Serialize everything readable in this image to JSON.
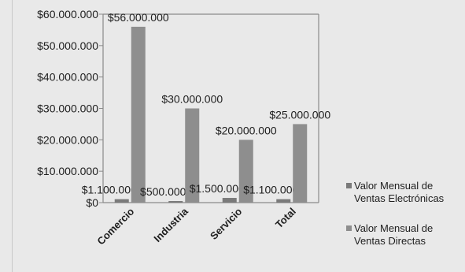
{
  "chart_data": {
    "type": "bar",
    "title": "",
    "xlabel": "",
    "ylabel": "",
    "categories": [
      "Comercio",
      "Industria",
      "Servicio",
      "Total"
    ],
    "series": [
      {
        "name": "Valor Mensual de Ventas Electrónicas",
        "values": [
          1100000,
          500000,
          1500000,
          1100000
        ],
        "labels": [
          "$1.100.000",
          "$500.000",
          "$1.500.000",
          "$1.100.000"
        ]
      },
      {
        "name": "Valor Mensual de Ventas Directas",
        "values": [
          56000000,
          30000000,
          20000000,
          25000000
        ],
        "labels": [
          "$56.000.000",
          "$30.000.000",
          "$20.000.000",
          "$25.000.000"
        ]
      }
    ],
    "ylim": [
      0,
      60000000
    ],
    "yticks": [
      0,
      10000000,
      20000000,
      30000000,
      40000000,
      50000000,
      60000000
    ],
    "ytick_labels": [
      "$0",
      "$10.000.000",
      "$20.000.000",
      "$30.000.000",
      "$40.000.000",
      "$50.000.000",
      "$60.000.000"
    ],
    "grid": false,
    "legend_position": "right"
  },
  "colors": {
    "background": "#e9e9e9",
    "plot_background": "#e9e9e9",
    "axis": "#8a8a8a",
    "series_electronic": "#7a7a7a",
    "series_direct": "#8e8e8e"
  }
}
